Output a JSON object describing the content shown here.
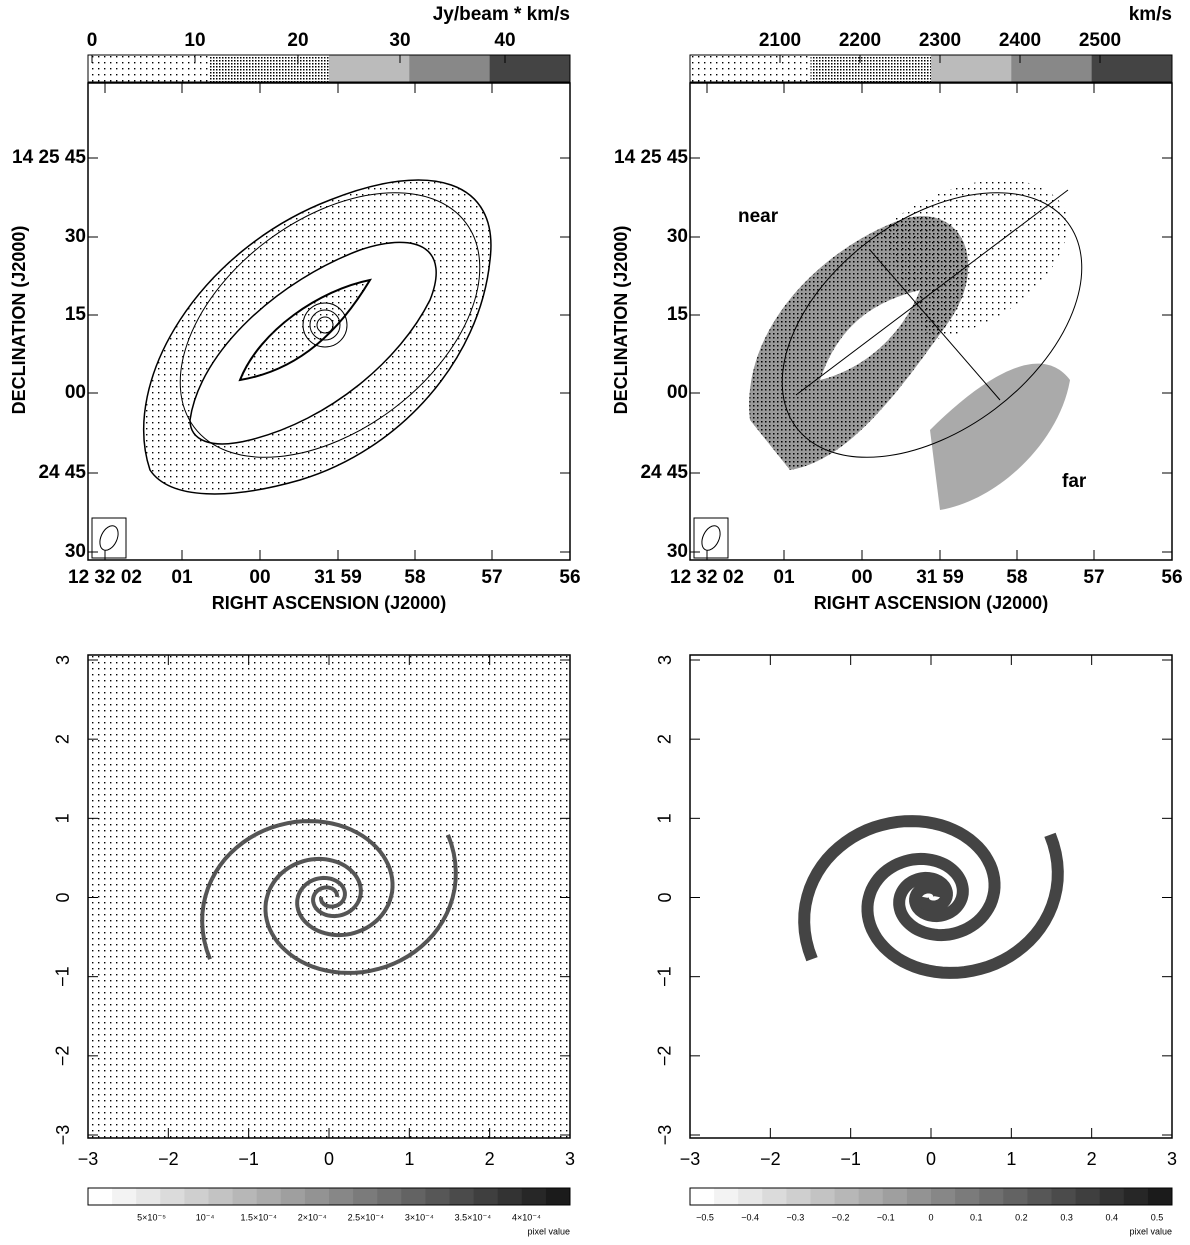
{
  "panels": [
    {
      "colorbar": {
        "unit": "Jy/beam * km/s",
        "ticks": [
          "0",
          "10",
          "20",
          "30",
          "40"
        ]
      },
      "x_label": "RIGHT ASCENSION (J2000)",
      "y_label": "DECLINATION (J2000)",
      "x_ticks": [
        "12 32 02",
        "01",
        "00",
        "31 59",
        "58",
        "57",
        "56"
      ],
      "y_ticks": [
        "14 25 45",
        "30",
        "15",
        "00",
        "24 45",
        "30"
      ]
    },
    {
      "colorbar": {
        "unit": "km/s",
        "ticks": [
          "2100",
          "2200",
          "2300",
          "2400",
          "2500"
        ]
      },
      "x_label": "RIGHT ASCENSION (J2000)",
      "y_label": "DECLINATION (J2000)",
      "x_ticks": [
        "12 32 02",
        "01",
        "00",
        "31 59",
        "58",
        "57",
        "56"
      ],
      "y_ticks": [
        "14 25 45",
        "30",
        "15",
        "00",
        "24 45",
        "30"
      ],
      "annotations": [
        "near",
        "far"
      ]
    },
    {
      "x_ticks": [
        "−3",
        "−2",
        "−1",
        "0",
        "1",
        "2",
        "3"
      ],
      "y_ticks": [
        "3",
        "2",
        "1",
        "0",
        "−1",
        "−2",
        "−3"
      ],
      "colorbar": {
        "label": "pixel value",
        "ticks": [
          "5×10⁻⁵",
          "10⁻⁴",
          "1.5×10⁻⁴",
          "2×10⁻⁴",
          "2.5×10⁻⁴",
          "3×10⁻⁴",
          "3.5×10⁻⁴",
          "4×10⁻⁴"
        ]
      }
    },
    {
      "x_ticks": [
        "−3",
        "−2",
        "−1",
        "0",
        "1",
        "2",
        "3"
      ],
      "y_ticks": [
        "3",
        "2",
        "1",
        "0",
        "−1",
        "−2",
        "−3"
      ],
      "colorbar": {
        "label": "pixel value",
        "ticks": [
          "−0.5",
          "−0.4",
          "−0.3",
          "−0.2",
          "−0.1",
          "0",
          "0.1",
          "0.2",
          "0.3",
          "0.4",
          "0.5"
        ]
      }
    }
  ]
}
